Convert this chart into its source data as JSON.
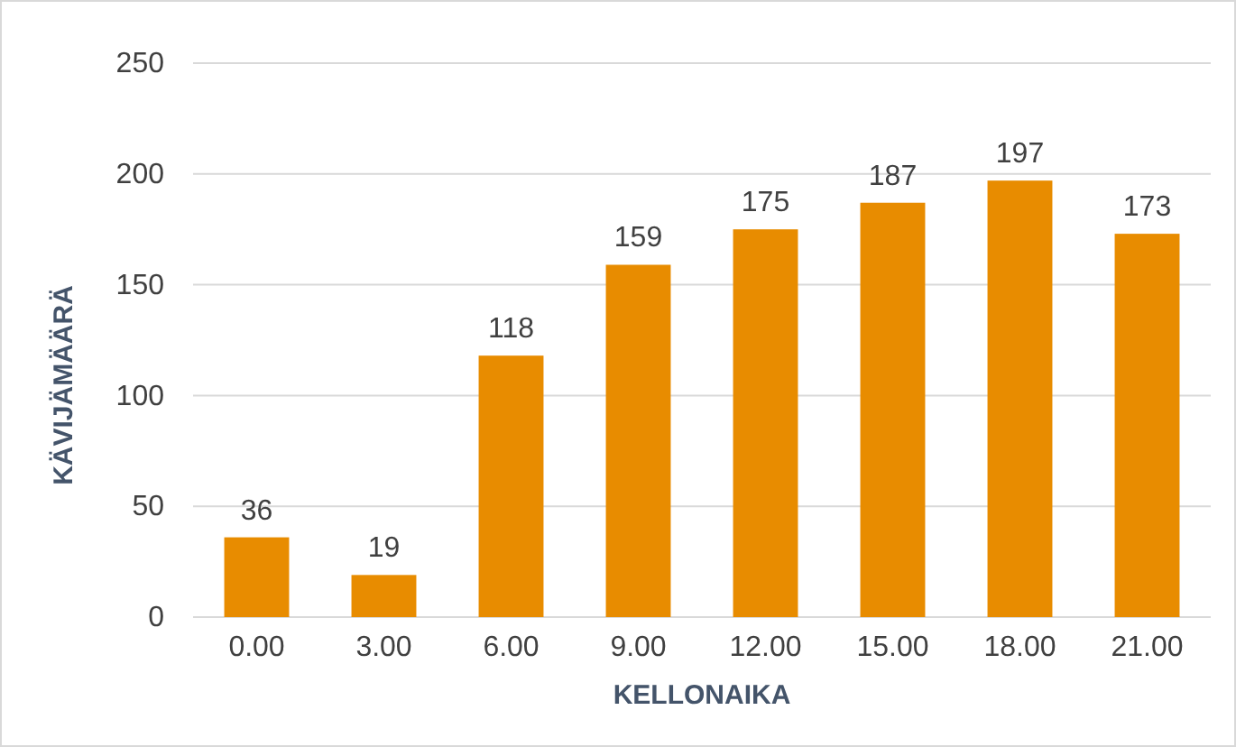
{
  "chart_data": {
    "type": "bar",
    "xlabel": "KELLONAIKA",
    "ylabel": "KÄVIJÄMÄÄRÄ",
    "categories": [
      "0.00",
      "3.00",
      "6.00",
      "9.00",
      "12.00",
      "15.00",
      "18.00",
      "21.00"
    ],
    "values": [
      36,
      19,
      118,
      159,
      175,
      187,
      197,
      173
    ],
    "color": "#e88c00",
    "ylim": [
      0,
      250
    ],
    "yticks": [
      0,
      50,
      100,
      150,
      200,
      250
    ],
    "grid": "y",
    "data_labels": true
  }
}
